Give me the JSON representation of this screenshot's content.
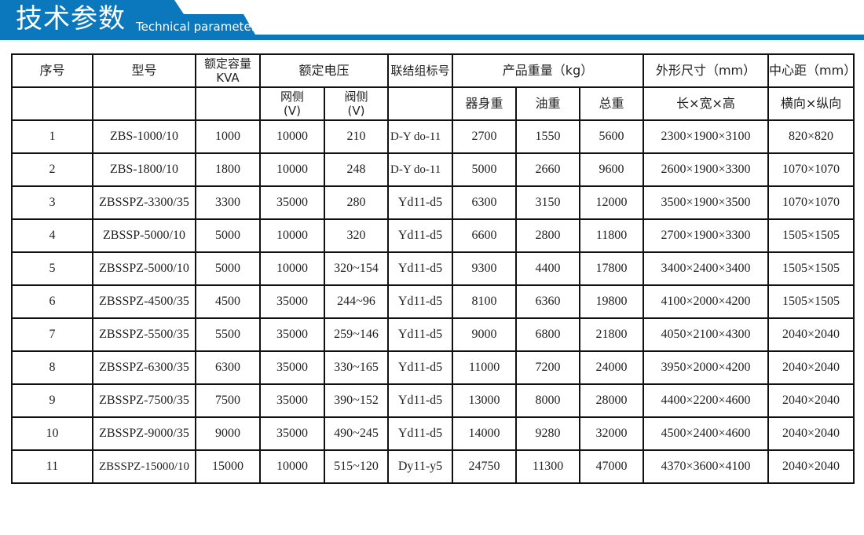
{
  "banner": {
    "title_cn": "技术参数",
    "title_en": "Technical parameter",
    "color": "#0b77bd"
  },
  "headers": {
    "seq": "序号",
    "model": "型号",
    "capacity": "额定容量",
    "capacity_unit": "KVA",
    "voltage": "额定电压",
    "grid_side": "网侧",
    "valve_side": "阀侧",
    "volt_unit": "(V)",
    "connection": "联结组标号",
    "weight": "产品重量（kg）",
    "body_weight": "器身重",
    "oil_weight": "油重",
    "total_weight": "总重",
    "dimensions": "外形尺寸（mm）",
    "dimensions_sub": "长×宽×高",
    "center": "中心距（mm）",
    "center_sub": "横向×纵向"
  },
  "rows": [
    {
      "seq": "1",
      "model": "ZBS-1000/10",
      "cap": "1000",
      "grid": "10000",
      "valve": "210",
      "conn": "D-Y  do-11",
      "body": "2700",
      "oil": "1550",
      "total": "5600",
      "dim": "2300×1900×3100",
      "center": "820×820"
    },
    {
      "seq": "2",
      "model": "ZBS-1800/10",
      "cap": "1800",
      "grid": "10000",
      "valve": "248",
      "conn": "D-Y  do-11",
      "body": "5000",
      "oil": "2660",
      "total": "9600",
      "dim": "2600×1900×3300",
      "center": "1070×1070"
    },
    {
      "seq": "3",
      "model": "ZBSSPZ-3300/35",
      "cap": "3300",
      "grid": "35000",
      "valve": "280",
      "conn": "Yd11-d5",
      "body": "6300",
      "oil": "3150",
      "total": "12000",
      "dim": "3500×1900×3500",
      "center": "1070×1070"
    },
    {
      "seq": "4",
      "model": "ZBSSP-5000/10",
      "cap": "5000",
      "grid": "10000",
      "valve": "320",
      "conn": "Yd11-d5",
      "body": "6600",
      "oil": "2800",
      "total": "11800",
      "dim": "2700×1900×3300",
      "center": "1505×1505"
    },
    {
      "seq": "5",
      "model": "ZBSSPZ-5000/10",
      "cap": "5000",
      "grid": "10000",
      "valve": "320~154",
      "conn": "Yd11-d5",
      "body": "9300",
      "oil": "4400",
      "total": "17800",
      "dim": "3400×2400×3400",
      "center": "1505×1505"
    },
    {
      "seq": "6",
      "model": "ZBSSPZ-4500/35",
      "cap": "4500",
      "grid": "35000",
      "valve": "244~96",
      "conn": "Yd11-d5",
      "body": "8100",
      "oil": "6360",
      "total": "19800",
      "dim": "4100×2000×4200",
      "center": "1505×1505"
    },
    {
      "seq": "7",
      "model": "ZBSSPZ-5500/35",
      "cap": "5500",
      "grid": "35000",
      "valve": "259~146",
      "conn": "Yd11-d5",
      "body": "9000",
      "oil": "6800",
      "total": "21800",
      "dim": "4050×2100×4300",
      "center": "2040×2040"
    },
    {
      "seq": "8",
      "model": "ZBSSPZ-6300/35",
      "cap": "6300",
      "grid": "35000",
      "valve": "330~165",
      "conn": "Yd11-d5",
      "body": "11000",
      "oil": "7200",
      "total": "24000",
      "dim": "3950×2000×4200",
      "center": "2040×2040"
    },
    {
      "seq": "9",
      "model": "ZBSSPZ-7500/35",
      "cap": "7500",
      "grid": "35000",
      "valve": "390~152",
      "conn": "Yd11-d5",
      "body": "13000",
      "oil": "8000",
      "total": "28000",
      "dim": "4400×2200×4600",
      "center": "2040×2040"
    },
    {
      "seq": "10",
      "model": "ZBSSPZ-9000/35",
      "cap": "9000",
      "grid": "35000",
      "valve": "490~245",
      "conn": "Yd11-d5",
      "body": "14000",
      "oil": "9280",
      "total": "32000",
      "dim": "4500×2400×4600",
      "center": "2040×2040"
    },
    {
      "seq": "11",
      "model": "ZBSSPZ-15000/10",
      "cap": "15000",
      "grid": "10000",
      "valve": "515~120",
      "conn": "Dy11-y5",
      "body": "24750",
      "oil": "11300",
      "total": "47000",
      "dim": "4370×3600×4100",
      "center": "2040×2040"
    }
  ]
}
